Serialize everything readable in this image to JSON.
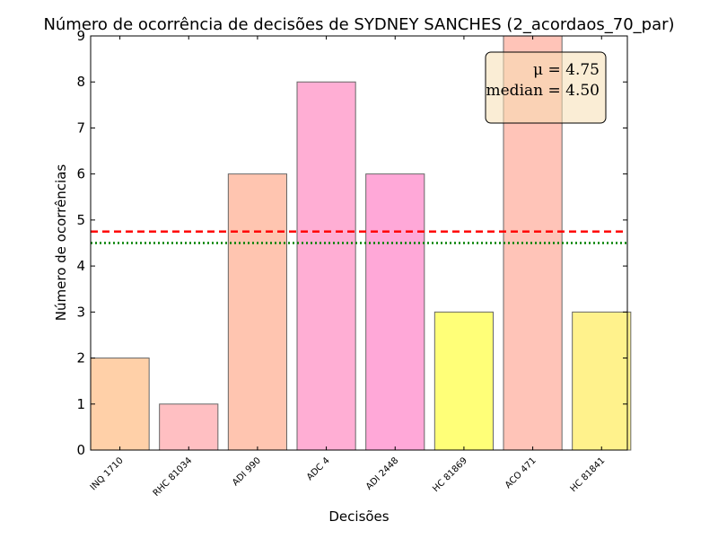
{
  "chart_data": {
    "type": "bar",
    "title": "Número de ocorrência de decisões de SYDNEY SANCHES (2_acordaos_70_par)",
    "xlabel": "Decisões",
    "ylabel": "Número de ocorrências",
    "categories": [
      "INQ 1710",
      "RHC 81034",
      "ADI 990",
      "ADC 4",
      "ADI 2448",
      "HC 81869",
      "ACO 471",
      "HC 81841"
    ],
    "values": [
      2,
      1,
      6,
      8,
      6,
      3,
      9,
      3
    ],
    "bar_colors": [
      "#ffd0a8",
      "#ffbfc2",
      "#ffc5b0",
      "#ffaed4",
      "#ffa8d8",
      "#ffff78",
      "#ffc4b8",
      "#fff28c"
    ],
    "ylim": [
      0,
      9
    ],
    "yticks": [
      0,
      1,
      2,
      3,
      4,
      5,
      6,
      7,
      8,
      9
    ],
    "mean": 4.75,
    "median": 4.5,
    "mean_line_color": "#ff0000",
    "median_line_color": "#008000",
    "legend_position": "top-right",
    "legend_mean_label": "μ = 4.75",
    "legend_median_label": "median = 4.50"
  }
}
